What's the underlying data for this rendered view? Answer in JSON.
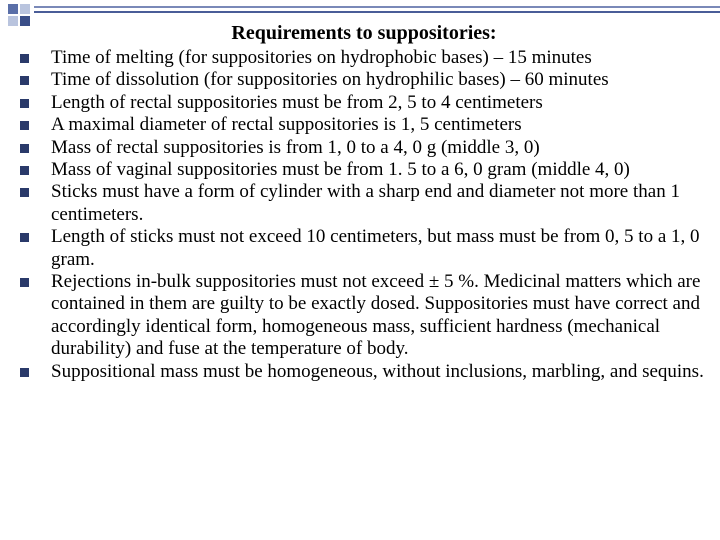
{
  "title": "Requirements to suppositories:",
  "items": [
    "Time of melting (for suppositories on hydrophobic bases) – 15 minutes",
    "Time of dissolution (for suppositories on hydrophilic bases) –  60 minutes",
    "Length of rectal suppositories must be from 2, 5 to 4 centimeters",
    "A maximal diameter of rectal suppositories is 1, 5 centimeters",
    "Mass of rectal suppositories is from 1, 0 to a 4, 0 g (middle 3, 0)",
    "Mass of vaginal suppositories must be from 1. 5 to a 6, 0 gram (middle 4, 0)",
    "Sticks must have a form of cylinder with a sharp end and diameter not more than 1 centimeters.",
    "Length of sticks must not exceed 10 centimeters, but mass must be from 0, 5 to a 1, 0 gram.",
    "Rejections in-bulk suppositories must not exceed ± 5 %. Medicinal matters which are contained in them are guilty to be exactly dosed. Suppositories must have correct and accordingly identical form, homogeneous mass, sufficient hardness (mechanical durability) and fuse at the temperature of body.",
    "Suppositional mass must be homogeneous, without inclusions, marbling, and sequins."
  ],
  "colors": {
    "bullet": "#2a3a6a",
    "deco_light": "#b9c4de",
    "deco_dark": "#3a4e88",
    "line": "#4a5d98",
    "bg": "#ffffff",
    "text": "#000000"
  }
}
